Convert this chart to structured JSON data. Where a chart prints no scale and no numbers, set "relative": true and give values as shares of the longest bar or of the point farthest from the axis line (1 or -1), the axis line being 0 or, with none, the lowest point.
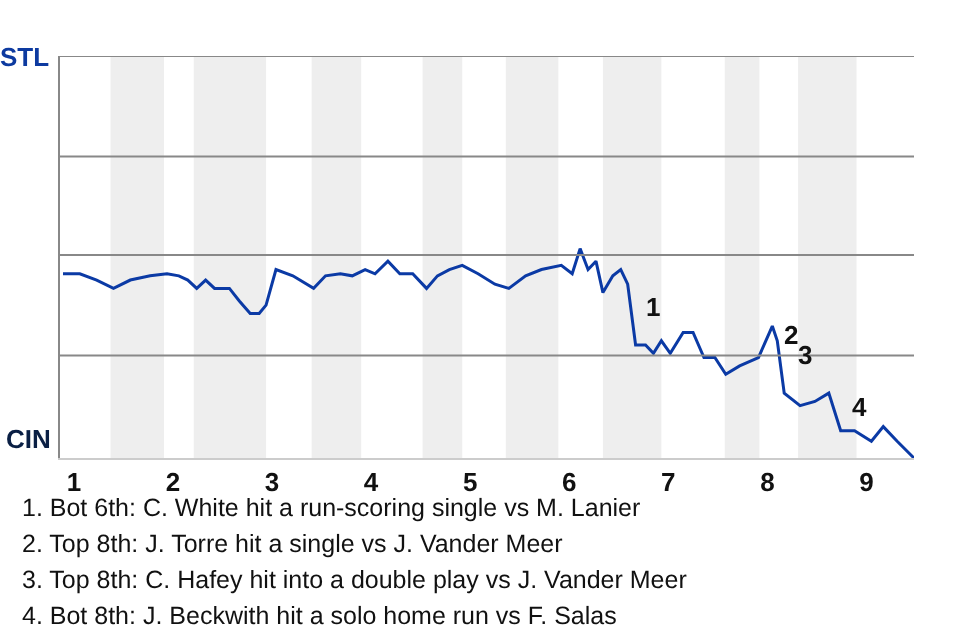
{
  "chart_data": {
    "type": "line",
    "relative": true,
    "x": [
      0.89,
      1.06,
      1.23,
      1.4,
      1.57,
      1.77,
      1.94,
      2.06,
      2.15,
      2.24,
      2.33,
      2.42,
      2.57,
      2.67,
      2.78,
      2.87,
      2.94,
      3.04,
      3.21,
      3.42,
      3.54,
      3.69,
      3.81,
      3.94,
      4.04,
      4.17,
      4.29,
      4.42,
      4.56,
      4.67,
      4.79,
      4.92,
      5.08,
      5.25,
      5.39,
      5.56,
      5.72,
      5.92,
      6.03,
      6.11,
      6.19,
      6.27,
      6.34,
      6.44,
      6.52,
      6.59,
      6.67,
      6.77,
      6.85,
      6.93,
      7.02,
      7.15,
      7.25,
      7.36,
      7.47,
      7.58,
      7.72,
      7.91,
      8.05,
      8.1,
      8.17,
      8.33,
      8.48,
      8.62,
      8.74,
      8.88,
      9.05,
      9.17,
      9.31,
      9.48
    ],
    "series": [
      {
        "color": "#0b3aa5",
        "values": [
          0.88,
          0.88,
          0.85,
          0.81,
          0.85,
          0.87,
          0.88,
          0.87,
          0.85,
          0.81,
          0.85,
          0.81,
          0.81,
          0.75,
          0.69,
          0.69,
          0.73,
          0.9,
          0.87,
          0.81,
          0.87,
          0.88,
          0.87,
          0.9,
          0.88,
          0.94,
          0.88,
          0.88,
          0.81,
          0.87,
          0.9,
          0.92,
          0.88,
          0.83,
          0.81,
          0.87,
          0.9,
          0.92,
          0.88,
          1,
          0.9,
          0.94,
          0.79,
          0.87,
          0.9,
          0.83,
          0.54,
          0.54,
          0.5,
          0.56,
          0.5,
          0.6,
          0.6,
          0.48,
          0.48,
          0.4,
          0.44,
          0.48,
          0.63,
          0.56,
          0.31,
          0.25,
          0.27,
          0.31,
          0.13,
          0.13,
          0.08,
          0.15,
          0.08,
          0
        ]
      }
    ],
    "xlim": [
      0.86,
      9.48
    ],
    "xticks": [
      1,
      2,
      3,
      4,
      5,
      6,
      7,
      8,
      9
    ],
    "ref_lines": [
      {
        "axis": "y",
        "value": 0.49,
        "color": "#888888",
        "line_style": "solid"
      },
      {
        "axis": "y",
        "value": 0.97,
        "color": "#888888",
        "line_style": "solid"
      },
      {
        "axis": "y",
        "value": 1.44,
        "color": "#888888",
        "line_style": "solid"
      },
      {
        "axis": "y",
        "value": 1.92,
        "color": "#888888",
        "line_style": "solid"
      }
    ],
    "marker": "none",
    "line_style": "solid",
    "bands": [
      {
        "axis": "x",
        "from": 1.37,
        "to": 1.91,
        "color": "#eeeeee"
      },
      {
        "axis": "x",
        "from": 2.21,
        "to": 2.94,
        "color": "#eeeeee"
      },
      {
        "axis": "x",
        "from": 3.4,
        "to": 3.9,
        "color": "#eeeeee"
      },
      {
        "axis": "x",
        "from": 4.52,
        "to": 4.92,
        "color": "#eeeeee"
      },
      {
        "axis": "x",
        "from": 5.36,
        "to": 5.89,
        "color": "#eeeeee"
      },
      {
        "axis": "x",
        "from": 6.34,
        "to": 6.93,
        "color": "#eeeeee"
      },
      {
        "axis": "x",
        "from": 7.57,
        "to": 7.92,
        "color": "#eeeeee"
      },
      {
        "axis": "x",
        "from": 8.31,
        "to": 8.9,
        "color": "#eeeeee"
      }
    ],
    "annotations": [
      {
        "text": "1",
        "x": 6.73,
        "y": 0.63
      },
      {
        "text": "2",
        "x": 8.12,
        "y": 0.5
      },
      {
        "text": "3",
        "x": 8.26,
        "y": 0.4
      },
      {
        "text": "4",
        "x": 8.81,
        "y": 0.15
      },
      "STL",
      "CIN",
      "1. Bot 6th: C. White hit a run-scoring single vs M. Lanier",
      "2. Top 8th: J. Torre hit a single vs J. Vander Meer",
      "3. Top 8th: C. Hafey hit into a double play vs J. Vander Meer",
      "4. Bot 8th: J. Beckwith hit a solo home run vs F. Salas"
    ]
  }
}
